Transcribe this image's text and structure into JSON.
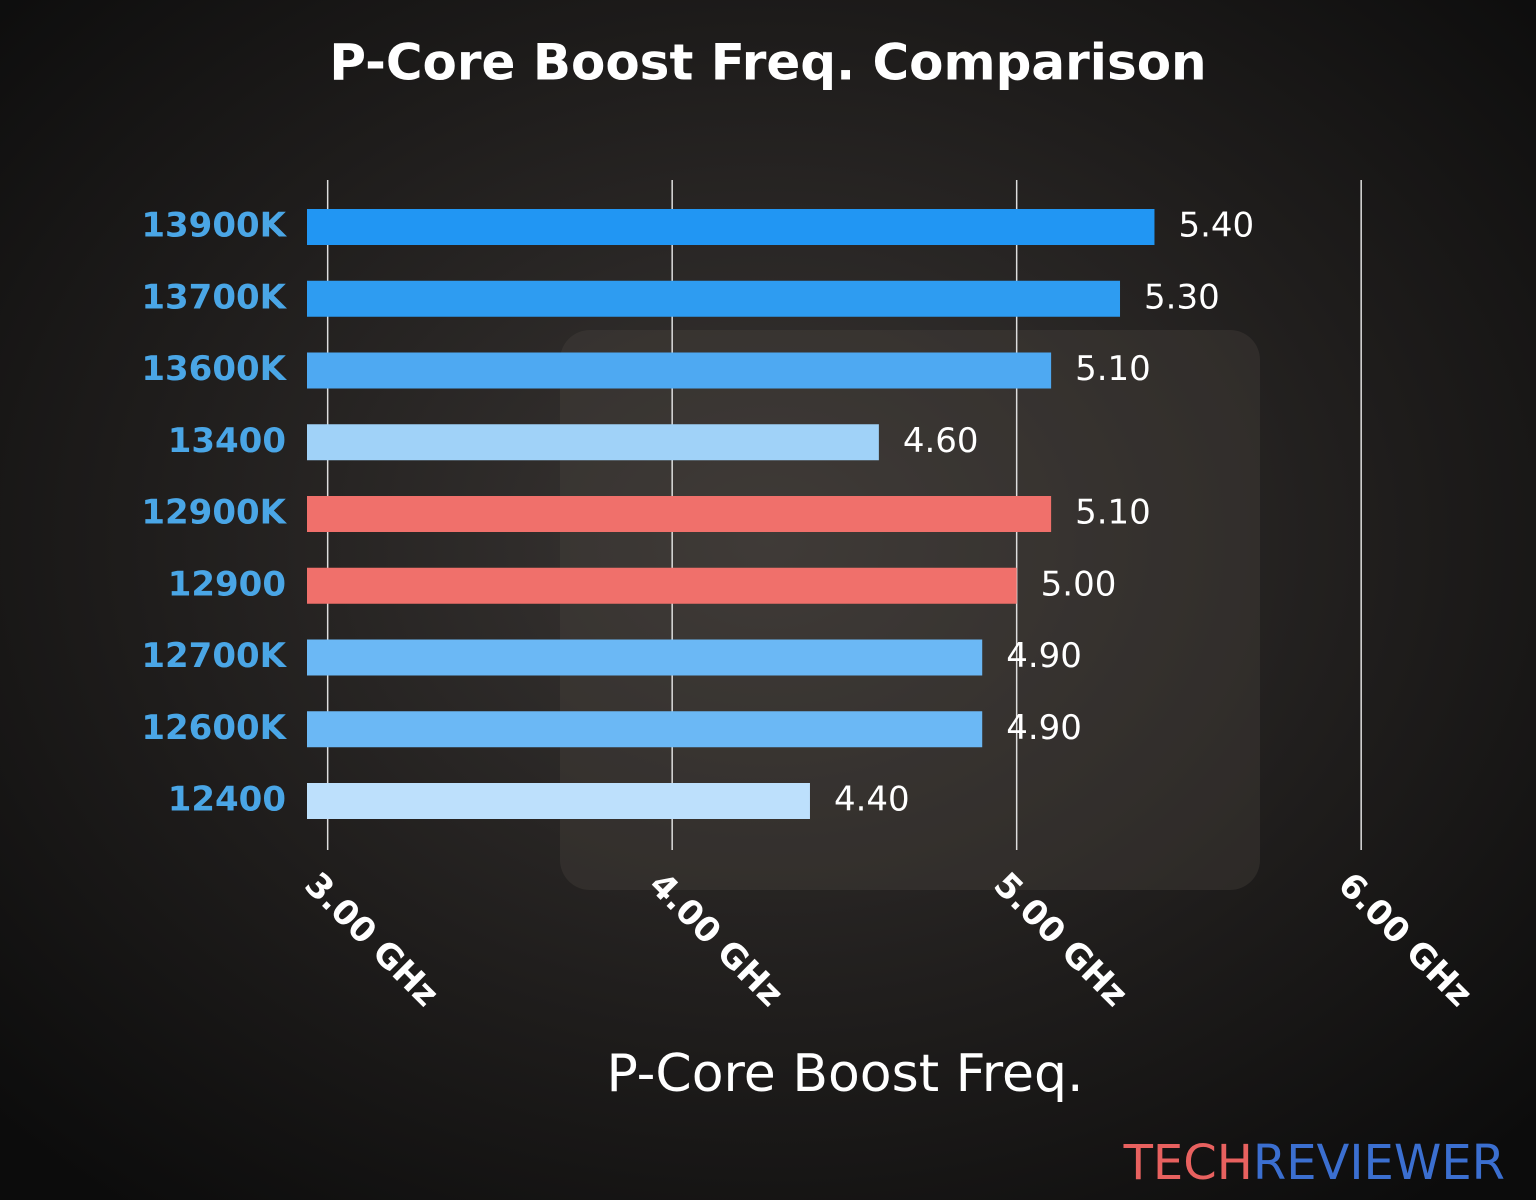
{
  "chart_data": {
    "type": "barh",
    "title": "P-Core Boost Freq. Comparison",
    "xlabel": "P-Core Boost Freq.",
    "categories": [
      "13900K",
      "13700K",
      "13600K",
      "13400",
      "12900K",
      "12900",
      "12700K",
      "12600K",
      "12400"
    ],
    "values": [
      5.4,
      5.3,
      5.1,
      4.6,
      5.1,
      5.0,
      4.9,
      4.9,
      4.4
    ],
    "value_labels": [
      "5.40",
      "5.30",
      "5.10",
      "4.60",
      "5.10",
      "5.00",
      "4.90",
      "4.90",
      "4.40"
    ],
    "colors": [
      "#2196f3",
      "#2e9cf1",
      "#4ea9f2",
      "#a0d2f8",
      "#f0706b",
      "#f0706b",
      "#6bb8f5",
      "#6bb8f5",
      "#bde0fc"
    ],
    "xlim": [
      2.94,
      6.05
    ],
    "xticks": [
      {
        "value": 3,
        "label": "3.00 GHz"
      },
      {
        "value": 4,
        "label": "4.00 GHz"
      },
      {
        "value": 5,
        "label": "5.00 GHz"
      },
      {
        "value": 6,
        "label": "6.00 GHz"
      }
    ],
    "grid": true,
    "logo": [
      "TECH",
      "REVIEWER"
    ]
  }
}
